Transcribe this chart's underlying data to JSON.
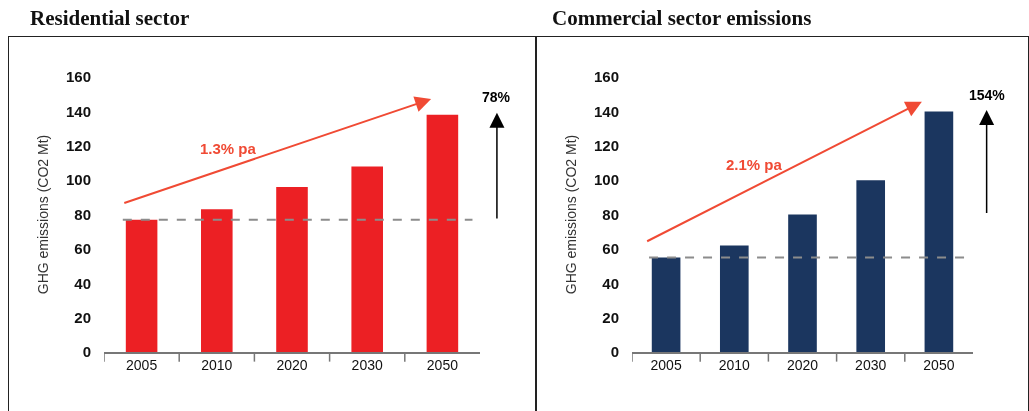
{
  "chart_data": [
    {
      "type": "bar",
      "title": "Residential sector",
      "ylabel": "GHG emissions (CO2 Mt)",
      "categories": [
        "2005",
        "2010",
        "2020",
        "2030",
        "2050"
      ],
      "values": [
        77,
        83,
        96,
        108,
        138
      ],
      "color": "#ec2024",
      "ylim": [
        0,
        160
      ],
      "yticks": [
        0,
        20,
        40,
        60,
        80,
        100,
        120,
        140,
        160
      ],
      "grid": false,
      "ref_lines": [
        {
          "axis": "y",
          "value": 77,
          "color": "#8c8c8c",
          "line_style": "dashed"
        }
      ],
      "annotations": [
        "1.3% pa",
        "78%"
      ]
    },
    {
      "type": "bar",
      "title": "Commercial sector emissions",
      "ylabel": "GHG emissions (CO2 Mt)",
      "categories": [
        "2005",
        "2010",
        "2020",
        "2030",
        "2050"
      ],
      "values": [
        55,
        62,
        80,
        100,
        140
      ],
      "color": "#1b365f",
      "ylim": [
        0,
        160
      ],
      "yticks": [
        0,
        20,
        40,
        60,
        80,
        100,
        120,
        140,
        160
      ],
      "grid": false,
      "ref_lines": [
        {
          "axis": "y",
          "value": 55,
          "color": "#8c8c8c",
          "line_style": "dashed"
        }
      ],
      "annotations": [
        "2.1% pa",
        "154%"
      ]
    }
  ]
}
